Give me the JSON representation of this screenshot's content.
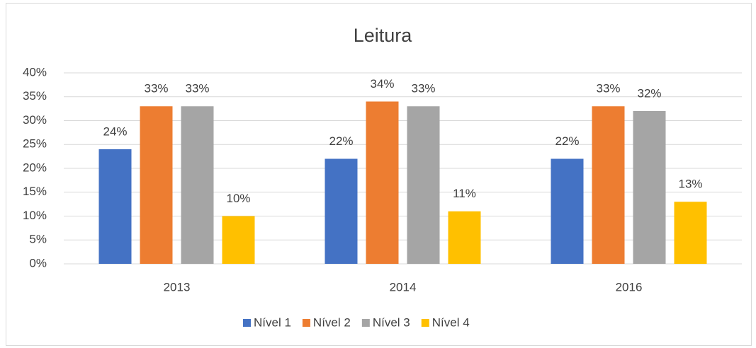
{
  "chart_data": {
    "type": "bar",
    "title": "Leitura",
    "categories": [
      "2013",
      "2014",
      "2016"
    ],
    "series": [
      {
        "name": "Nível 1",
        "color": "#4472c4",
        "values": [
          24,
          22,
          22
        ],
        "value_labels": [
          "24%",
          "22%",
          "22%"
        ]
      },
      {
        "name": "Nível 2",
        "color": "#ed7d31",
        "values": [
          33,
          34,
          33
        ],
        "value_labels": [
          "33%",
          "34%",
          "33%"
        ]
      },
      {
        "name": "Nível 3",
        "color": "#a5a5a5",
        "values": [
          33,
          33,
          32
        ],
        "value_labels": [
          "33%",
          "33%",
          "32%"
        ]
      },
      {
        "name": "Nível 4",
        "color": "#ffc000",
        "values": [
          10,
          11,
          13
        ],
        "value_labels": [
          "10%",
          "11%",
          "13%"
        ]
      }
    ],
    "ylim": [
      0,
      40
    ],
    "yticks": [
      {
        "value": 0,
        "label": "0%"
      },
      {
        "value": 5,
        "label": "5%"
      },
      {
        "value": 10,
        "label": "10%"
      },
      {
        "value": 15,
        "label": "15%"
      },
      {
        "value": 20,
        "label": "20%"
      },
      {
        "value": 25,
        "label": "25%"
      },
      {
        "value": 30,
        "label": "30%"
      },
      {
        "value": 35,
        "label": "35%"
      },
      {
        "value": 40,
        "label": "40%"
      }
    ],
    "grid": true,
    "legend": "bottom"
  }
}
